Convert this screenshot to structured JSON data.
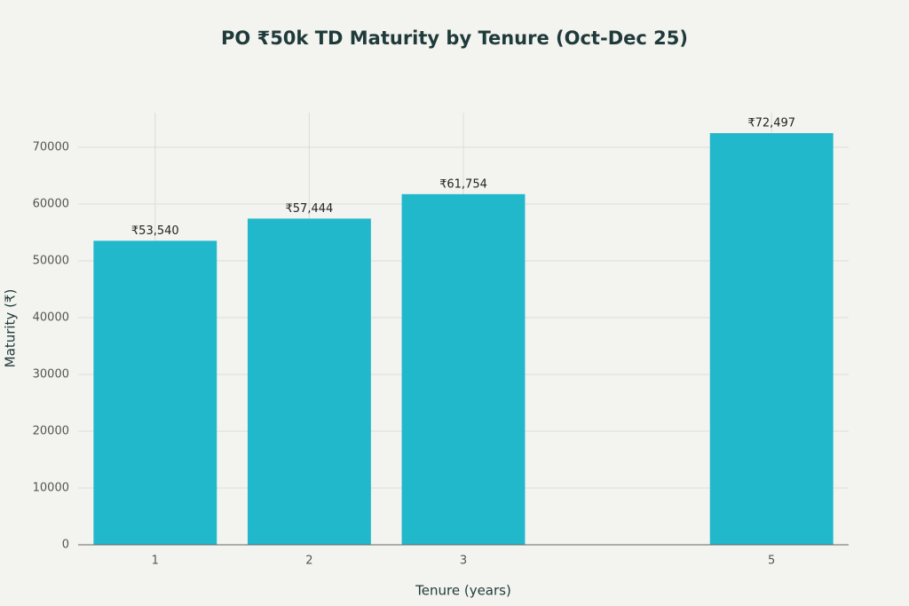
{
  "chart_data": {
    "type": "bar",
    "title": "PO ₹50k TD Maturity by Tenure (Oct-Dec 25)",
    "x_label": "Tenure (years)",
    "y_label": "Maturity (₹)",
    "x": [
      1,
      2,
      3,
      5
    ],
    "values": [
      53540,
      57444,
      61754,
      72497
    ],
    "value_labels": [
      "₹53,540",
      "₹57,444",
      "₹61,754",
      "₹72,497"
    ],
    "color": "#21b8cc",
    "xlim": [
      0.5,
      5.5
    ],
    "xticks": [
      1,
      2,
      3,
      5
    ],
    "ylim": [
      0,
      76100
    ],
    "yticks": [
      0,
      10000,
      20000,
      30000,
      40000,
      50000,
      60000,
      70000
    ],
    "grid": true
  }
}
